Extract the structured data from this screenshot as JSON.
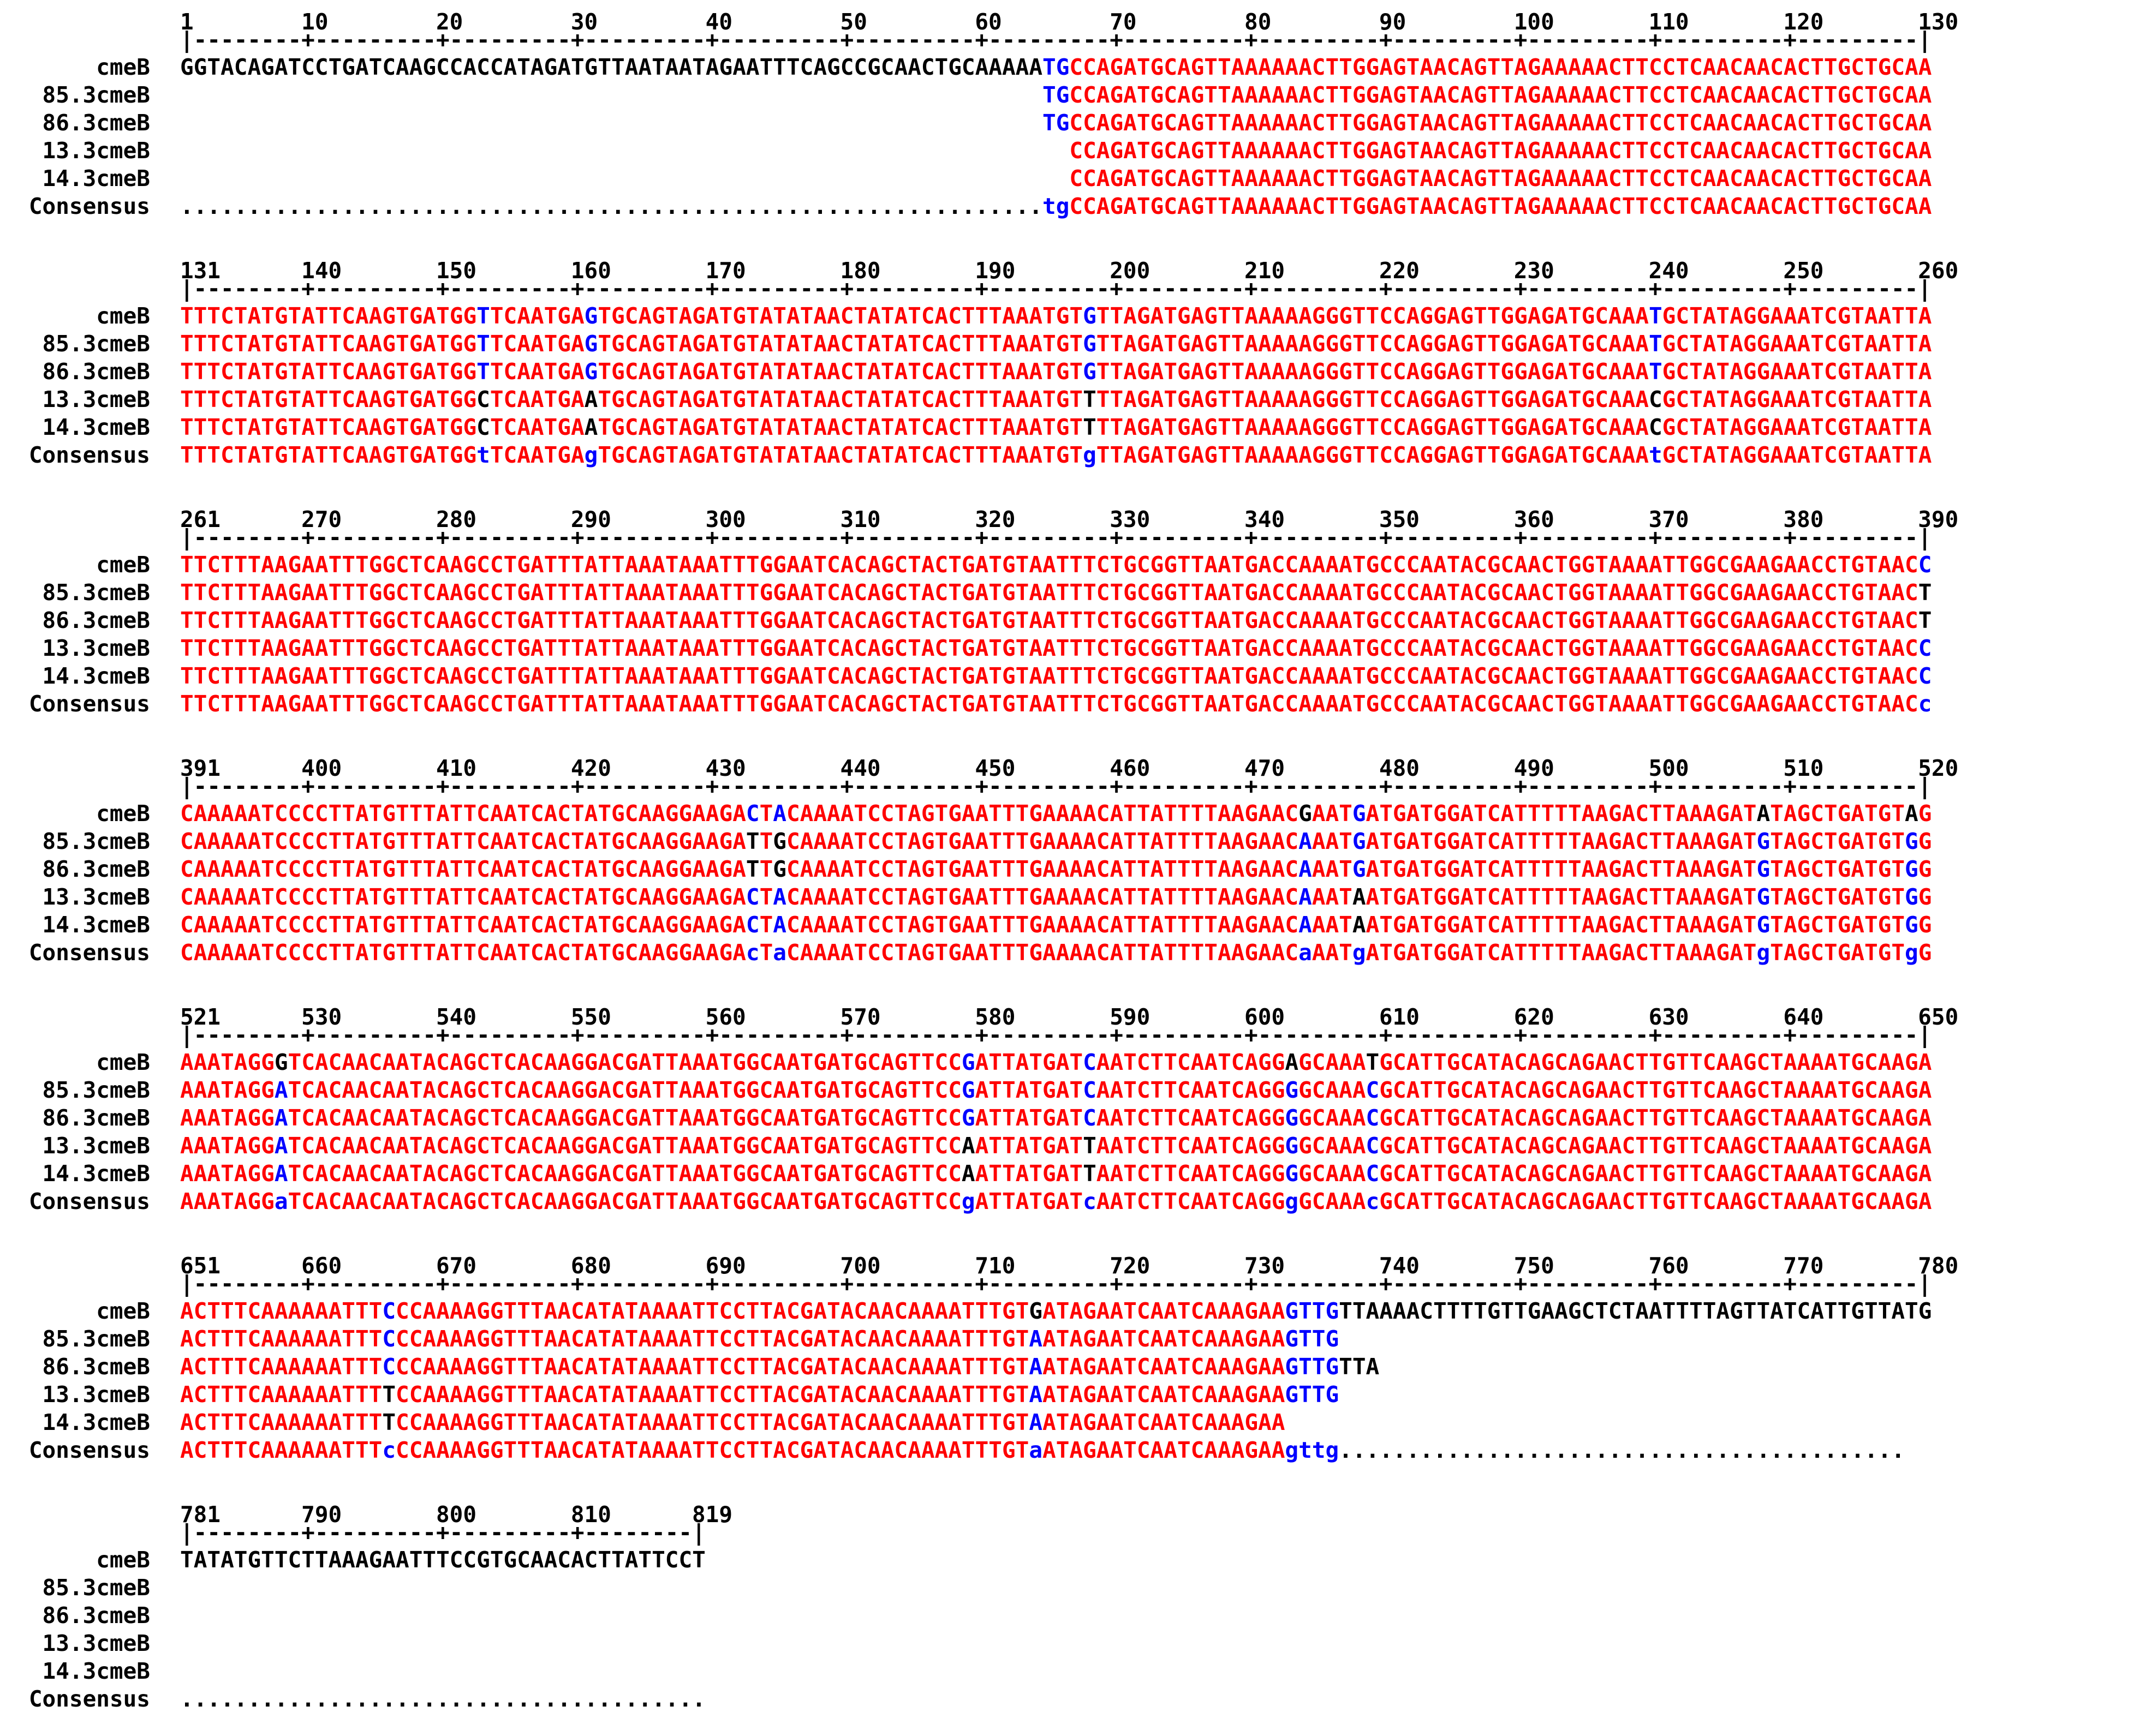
{
  "colors": {
    "high": "#ff0000",
    "low": "#0000ff",
    "neutral": "#000000"
  },
  "blocks": [
    {
      "start": 1,
      "ruler": "1        10        20        30        40        50        60        70        80        90        100       110       120       130",
      "ruler_line": "|--------+---------+---------+---------+---------+---------+---------+---------+---------+---------+---------+---------+---------|",
      "rows": [
        {
          "name": "cmeB",
          "seq": "GGTACAGATCCTGATCAAGCCACCATAGATGTTAATAATAGAATTTCAGCCGCAACTGCAAAAATGCCAGATGCAGTTAAAAAACTTGGAGTAACAGTTAGAAAAACTTCCTCAACAACACTTGCTGCAA"
        },
        {
          "name": "85.3cmeB",
          "seq": "                                                                TGCCAGATGCAGTTAAAAAACTTGGAGTAACAGTTAGAAAAACTTCCTCAACAACACTTGCTGCAA"
        },
        {
          "name": "86.3cmeB",
          "seq": "                                                                TGCCAGATGCAGTTAAAAAACTTGGAGTAACAGTTAGAAAAACTTCCTCAACAACACTTGCTGCAA"
        },
        {
          "name": "13.3cmeB",
          "seq": "                                                                  CCAGATGCAGTTAAAAAACTTGGAGTAACAGTTAGAAAAACTTCCTCAACAACACTTGCTGCAA"
        },
        {
          "name": "14.3cmeB",
          "seq": "                                                                  CCAGATGCAGTTAAAAAACTTGGAGTAACAGTTAGAAAAACTTCCTCAACAACACTTGCTGCAA"
        },
        {
          "name": "Consensus",
          "seq": "................................................................tgCCAGATGCAGTTAAAAAACTTGGAGTAACAGTTAGAAAAACTTCCTCAACAACACTTGCTGCAA"
        }
      ]
    },
    {
      "start": 131,
      "ruler": "131      140       150       160       170       180       190       200       210       220       230       240       250       260",
      "ruler_line": "|--------+---------+---------+---------+---------+---------+---------+---------+---------+---------+---------+---------+---------|",
      "rows": [
        {
          "name": "cmeB",
          "seq": "TTTCTATGTATTCAAGTGATGGTTCAATGAGTGCAGTAGATGTATATAACTATATCACTTTAAATGTGTTAGATGAGTTAAAAAGGGTTCCAGGAGTTGGAGATGCAAATGCTATAGGAAATCGTAATTA"
        },
        {
          "name": "85.3cmeB",
          "seq": "TTTCTATGTATTCAAGTGATGGTTCAATGAGTGCAGTAGATGTATATAACTATATCACTTTAAATGTGTTAGATGAGTTAAAAAGGGTTCCAGGAGTTGGAGATGCAAATGCTATAGGAAATCGTAATTA"
        },
        {
          "name": "86.3cmeB",
          "seq": "TTTCTATGTATTCAAGTGATGGTTCAATGAGTGCAGTAGATGTATATAACTATATCACTTTAAATGTGTTAGATGAGTTAAAAAGGGTTCCAGGAGTTGGAGATGCAAATGCTATAGGAAATCGTAATTA"
        },
        {
          "name": "13.3cmeB",
          "seq": "TTTCTATGTATTCAAGTGATGGCTCAATGAATGCAGTAGATGTATATAACTATATCACTTTAAATGTTTTAGATGAGTTAAAAAGGGTTCCAGGAGTTGGAGATGCAAACGCTATAGGAAATCGTAATTA"
        },
        {
          "name": "14.3cmeB",
          "seq": "TTTCTATGTATTCAAGTGATGGCTCAATGAATGCAGTAGATGTATATAACTATATCACTTTAAATGTTTTAGATGAGTTAAAAAGGGTTCCAGGAGTTGGAGATGCAAACGCTATAGGAAATCGTAATTA"
        },
        {
          "name": "Consensus",
          "seq": "TTTCTATGTATTCAAGTGATGGtTCAATGAgTGCAGTAGATGTATATAACTATATCACTTTAAATGTgTTAGATGAGTTAAAAAGGGTTCCAGGAGTTGGAGATGCAAAtGCTATAGGAAATCGTAATTA"
        }
      ]
    },
    {
      "start": 261,
      "ruler": "261      270       280       290       300       310       320       330       340       350       360       370       380       390",
      "ruler_line": "|--------+---------+---------+---------+---------+---------+---------+---------+---------+---------+---------+---------+---------|",
      "rows": [
        {
          "name": "cmeB",
          "seq": "TTCTTTAAGAATTTGGCTCAAGCCTGATTTATTAAATAAATTTGGAATCACAGCTACTGATGTAATTTCTGCGGTTAATGACCAAAATGCCCAATACGCAACTGGTAAAATTGGCGAAGAACCTGTAACC"
        },
        {
          "name": "85.3cmeB",
          "seq": "TTCTTTAAGAATTTGGCTCAAGCCTGATTTATTAAATAAATTTGGAATCACAGCTACTGATGTAATTTCTGCGGTTAATGACCAAAATGCCCAATACGCAACTGGTAAAATTGGCGAAGAACCTGTAACT"
        },
        {
          "name": "86.3cmeB",
          "seq": "TTCTTTAAGAATTTGGCTCAAGCCTGATTTATTAAATAAATTTGGAATCACAGCTACTGATGTAATTTCTGCGGTTAATGACCAAAATGCCCAATACGCAACTGGTAAAATTGGCGAAGAACCTGTAACT"
        },
        {
          "name": "13.3cmeB",
          "seq": "TTCTTTAAGAATTTGGCTCAAGCCTGATTTATTAAATAAATTTGGAATCACAGCTACTGATGTAATTTCTGCGGTTAATGACCAAAATGCCCAATACGCAACTGGTAAAATTGGCGAAGAACCTGTAACC"
        },
        {
          "name": "14.3cmeB",
          "seq": "TTCTTTAAGAATTTGGCTCAAGCCTGATTTATTAAATAAATTTGGAATCACAGCTACTGATGTAATTTCTGCGGTTAATGACCAAAATGCCCAATACGCAACTGGTAAAATTGGCGAAGAACCTGTAACC"
        },
        {
          "name": "Consensus",
          "seq": "TTCTTTAAGAATTTGGCTCAAGCCTGATTTATTAAATAAATTTGGAATCACAGCTACTGATGTAATTTCTGCGGTTAATGACCAAAATGCCCAATACGCAACTGGTAAAATTGGCGAAGAACCTGTAACc"
        }
      ]
    },
    {
      "start": 391,
      "ruler": "391      400       410       420       430       440       450       460       470       480       490       500       510       520",
      "ruler_line": "|--------+---------+---------+---------+---------+---------+---------+---------+---------+---------+---------+---------+---------|",
      "rows": [
        {
          "name": "cmeB",
          "seq": "CAAAAATCCCCTTATGTTTATTCAATCACTATGCAAGGAAGACTACAAAATCCTAGTGAATTTGAAAACATTATTTTAAGAACGAATGATGATGGATCATTTTTAAGACTTAAAGATATAGCTGATGTAG"
        },
        {
          "name": "85.3cmeB",
          "seq": "CAAAAATCCCCTTATGTTTATTCAATCACTATGCAAGGAAGATTGCAAAATCCTAGTGAATTTGAAAACATTATTTTAAGAACAAATGATGATGGATCATTTTTAAGACTTAAAGATGTAGCTGATGTGG"
        },
        {
          "name": "86.3cmeB",
          "seq": "CAAAAATCCCCTTATGTTTATTCAATCACTATGCAAGGAAGATTGCAAAATCCTAGTGAATTTGAAAACATTATTTTAAGAACAAATGATGATGGATCATTTTTAAGACTTAAAGATGTAGCTGATGTGG"
        },
        {
          "name": "13.3cmeB",
          "seq": "CAAAAATCCCCTTATGTTTATTCAATCACTATGCAAGGAAGACTACAAAATCCTAGTGAATTTGAAAACATTATTTTAAGAACAAATAATGATGGATCATTTTTAAGACTTAAAGATGTAGCTGATGTGG"
        },
        {
          "name": "14.3cmeB",
          "seq": "CAAAAATCCCCTTATGTTTATTCAATCACTATGCAAGGAAGACTACAAAATCCTAGTGAATTTGAAAACATTATTTTAAGAACAAATAATGATGGATCATTTTTAAGACTTAAAGATGTAGCTGATGTGG"
        },
        {
          "name": "Consensus",
          "seq": "CAAAAATCCCCTTATGTTTATTCAATCACTATGCAAGGAAGAcTaCAAAATCCTAGTGAATTTGAAAACATTATTTTAAGAACaAATgATGATGGATCATTTTTAAGACTTAAAGATgTAGCTGATGTgG"
        }
      ]
    },
    {
      "start": 521,
      "ruler": "521      530       540       550       560       570       580       590       600       610       620       630       640       650",
      "ruler_line": "|--------+---------+---------+---------+---------+---------+---------+---------+---------+---------+---------+---------+---------|",
      "rows": [
        {
          "name": "cmeB",
          "seq": "AAATAGGGTCACAACAATACAGCTCACAAGGACGATTAAATGGCAATGATGCAGTTCCGATTATGATCAATCTTCAATCAGGAGCAAATGCATTGCATACAGCAGAACTTGTTCAAGCTAAAATGCAAGA"
        },
        {
          "name": "85.3cmeB",
          "seq": "AAATAGGATCACAACAATACAGCTCACAAGGACGATTAAATGGCAATGATGCAGTTCCGATTATGATCAATCTTCAATCAGGGGCAAACGCATTGCATACAGCAGAACTTGTTCAAGCTAAAATGCAAGA"
        },
        {
          "name": "86.3cmeB",
          "seq": "AAATAGGATCACAACAATACAGCTCACAAGGACGATTAAATGGCAATGATGCAGTTCCGATTATGATCAATCTTCAATCAGGGGCAAACGCATTGCATACAGCAGAACTTGTTCAAGCTAAAATGCAAGA"
        },
        {
          "name": "13.3cmeB",
          "seq": "AAATAGGATCACAACAATACAGCTCACAAGGACGATTAAATGGCAATGATGCAGTTCCAATTATGATTAATCTTCAATCAGGGGCAAACGCATTGCATACAGCAGAACTTGTTCAAGCTAAAATGCAAGA"
        },
        {
          "name": "14.3cmeB",
          "seq": "AAATAGGATCACAACAATACAGCTCACAAGGACGATTAAATGGCAATGATGCAGTTCCAATTATGATTAATCTTCAATCAGGGGCAAACGCATTGCATACAGCAGAACTTGTTCAAGCTAAAATGCAAGA"
        },
        {
          "name": "Consensus",
          "seq": "AAATAGGaTCACAACAATACAGCTCACAAGGACGATTAAATGGCAATGATGCAGTTCCgATTATGATcAATCTTCAATCAGGgGCAAAcGCATTGCATACAGCAGAACTTGTTCAAGCTAAAATGCAAGA"
        }
      ]
    },
    {
      "start": 651,
      "ruler": "651      660       670       680       690       700       710       720       730       740       750       760       770       780",
      "ruler_line": "|--------+---------+---------+---------+---------+---------+---------+---------+---------+---------+---------+---------+---------|",
      "rows": [
        {
          "name": "cmeB",
          "seq": "ACTTTCAAAAAATTTCCCAAAAGGTTTAACATATAAAATTCCTTACGATACAACAAAATTTGTGATAGAATCAATCAAAGAAGTTGTTAAAACTTTTGTTGAAGCTCTAATTTTAGTTATCATTGTTATG"
        },
        {
          "name": "85.3cmeB",
          "seq": "ACTTTCAAAAAATTTCCCAAAAGGTTTAACATATAAAATTCCTTACGATACAACAAAATTTGTAATAGAATCAATCAAAGAAGTTG"
        },
        {
          "name": "86.3cmeB",
          "seq": "ACTTTCAAAAAATTTCCCAAAAGGTTTAACATATAAAATTCCTTACGATACAACAAAATTTGTAATAGAATCAATCAAAGAAGTTGTTA"
        },
        {
          "name": "13.3cmeB",
          "seq": "ACTTTCAAAAAATTTTCCAAAAGGTTTAACATATAAAATTCCTTACGATACAACAAAATTTGTAATAGAATCAATCAAAGAAGTTG"
        },
        {
          "name": "14.3cmeB",
          "seq": "ACTTTCAAAAAATTTTCCAAAAGGTTTAACATATAAAATTCCTTACGATACAACAAAATTTGTAATAGAATCAATCAAAGAA"
        },
        {
          "name": "Consensus",
          "seq": "ACTTTCAAAAAATTTcCCAAAAGGTTTAACATATAAAATTCCTTACGATACAACAAAATTTGTaATAGAATCAATCAAAGAAgttg.........................................."
        }
      ]
    },
    {
      "start": 781,
      "ruler": "781      790       800       810      819",
      "ruler_line": "|--------+---------+---------+--------|",
      "rows": [
        {
          "name": "cmeB",
          "seq": "TATATGTTCTTAAAGAATTTCCGTGCAACACTTATTCCT"
        },
        {
          "name": "85.3cmeB",
          "seq": ""
        },
        {
          "name": "86.3cmeB",
          "seq": ""
        },
        {
          "name": "13.3cmeB",
          "seq": ""
        },
        {
          "name": "14.3cmeB",
          "seq": ""
        },
        {
          "name": "Consensus",
          "seq": "......................................."
        }
      ]
    }
  ]
}
